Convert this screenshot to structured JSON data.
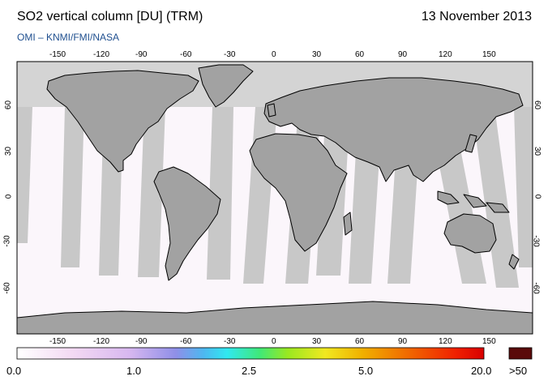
{
  "header": {
    "title": "SO2 vertical column [DU] (TRM)",
    "date": "13 November 2013",
    "credit": "OMI  –  KNMI/FMI/NASA"
  },
  "axes": {
    "lon_ticks": [
      "-150",
      "-120",
      "-90",
      "-60",
      "-30",
      "0",
      "30",
      "60",
      "90",
      "120",
      "150"
    ],
    "lat_ticks": [
      "60",
      "30",
      "0",
      "-30",
      "-60"
    ]
  },
  "colorbar": {
    "labels": [
      "0.0",
      "1.0",
      "2.5",
      "5.0",
      "20.0"
    ],
    "overflow_label": ">50",
    "overflow_color": "#5a0a0a"
  },
  "colors": {
    "no_data": "#d4d4d4",
    "swath": "#c8c8c8",
    "land": "#a2a2a2"
  }
}
